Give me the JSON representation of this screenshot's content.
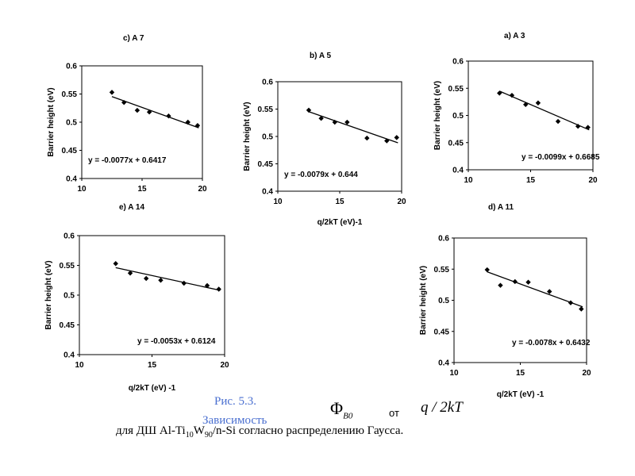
{
  "chart_data": [
    {
      "id": "c",
      "type": "scatter",
      "title": "c) A 7",
      "xlabel": "",
      "ylabel": "Barrier height (eV)",
      "xlim": [
        10,
        20
      ],
      "ylim": [
        0.4,
        0.6
      ],
      "xticks": [
        10,
        15,
        20
      ],
      "yticks": [
        0.4,
        0.45,
        0.5,
        0.55,
        0.6
      ],
      "points": [
        [
          12.5,
          0.553
        ],
        [
          13.5,
          0.535
        ],
        [
          14.6,
          0.521
        ],
        [
          15.6,
          0.518
        ],
        [
          17.2,
          0.511
        ],
        [
          18.8,
          0.5
        ],
        [
          19.6,
          0.494
        ]
      ],
      "trendline": {
        "slope": -0.0077,
        "intercept": 0.6417,
        "x": [
          12.5,
          19.7
        ]
      },
      "equation": "y = -0.0077x + 0.6417"
    },
    {
      "id": "b",
      "type": "scatter",
      "title": "b) A 5",
      "xlabel": "q/2kT (eV)-1",
      "ylabel": "Barrier height (eV)",
      "xlim": [
        10,
        20
      ],
      "ylim": [
        0.4,
        0.6
      ],
      "xticks": [
        10,
        15,
        20
      ],
      "yticks": [
        0.4,
        0.45,
        0.5,
        0.55,
        0.6
      ],
      "points": [
        [
          12.5,
          0.548
        ],
        [
          13.5,
          0.533
        ],
        [
          14.6,
          0.526
        ],
        [
          15.6,
          0.526
        ],
        [
          17.2,
          0.497
        ],
        [
          18.8,
          0.492
        ],
        [
          19.6,
          0.498
        ]
      ],
      "trendline": {
        "slope": -0.0079,
        "intercept": 0.644,
        "x": [
          12.5,
          19.7
        ]
      },
      "equation": "y = -0.0079x + 0.644"
    },
    {
      "id": "a",
      "type": "scatter",
      "title": "a) A 3",
      "xlabel": "",
      "ylabel": "Barrier height (eV)",
      "xlim": [
        10,
        20
      ],
      "ylim": [
        0.4,
        0.6
      ],
      "xticks": [
        10,
        15,
        20
      ],
      "yticks": [
        0.4,
        0.45,
        0.5,
        0.55,
        0.6
      ],
      "points": [
        [
          12.5,
          0.541
        ],
        [
          13.5,
          0.537
        ],
        [
          14.6,
          0.52
        ],
        [
          15.6,
          0.523
        ],
        [
          17.2,
          0.489
        ],
        [
          18.8,
          0.48
        ],
        [
          19.6,
          0.478
        ]
      ],
      "trendline": {
        "slope": -0.0099,
        "intercept": 0.6685,
        "x": [
          12.5,
          19.7
        ]
      },
      "equation": "y = -0.0099x + 0.6685"
    },
    {
      "id": "e",
      "type": "scatter",
      "title": "e) A 14",
      "xlabel": "q/2kT (eV) -1",
      "ylabel": "Barrier height (eV)",
      "xlim": [
        10,
        20
      ],
      "ylim": [
        0.4,
        0.6
      ],
      "xticks": [
        10,
        15,
        20
      ],
      "yticks": [
        0.4,
        0.45,
        0.5,
        0.55,
        0.6
      ],
      "points": [
        [
          12.5,
          0.553
        ],
        [
          13.5,
          0.537
        ],
        [
          14.6,
          0.528
        ],
        [
          15.6,
          0.525
        ],
        [
          17.2,
          0.52
        ],
        [
          18.8,
          0.516
        ],
        [
          19.6,
          0.51
        ]
      ],
      "trendline": {
        "slope": -0.0053,
        "intercept": 0.6124,
        "x": [
          12.5,
          19.7
        ]
      },
      "equation": "y = -0.0053x + 0.6124"
    },
    {
      "id": "d",
      "type": "scatter",
      "title": "d) A 11",
      "xlabel": "q/2kT (eV) -1",
      "ylabel": "Barrier height (eV)",
      "xlim": [
        10,
        20
      ],
      "ylim": [
        0.4,
        0.6
      ],
      "xticks": [
        10,
        15,
        20
      ],
      "yticks": [
        0.4,
        0.45,
        0.5,
        0.55,
        0.6
      ],
      "points": [
        [
          12.5,
          0.549
        ],
        [
          13.5,
          0.524
        ],
        [
          14.6,
          0.53
        ],
        [
          15.6,
          0.529
        ],
        [
          17.2,
          0.514
        ],
        [
          18.8,
          0.496
        ],
        [
          19.6,
          0.486
        ]
      ],
      "trendline": {
        "slope": -0.0078,
        "intercept": 0.6432,
        "x": [
          12.5,
          19.7
        ]
      },
      "equation": "y = -0.0078x + 0.6432"
    }
  ],
  "caption": {
    "fig_label": "Рис. 5.3.",
    "dependence": "Зависимость",
    "phi_symbol": "Φ",
    "phi_sub": "B0",
    "ot": "от",
    "q_over_2kt": "q / 2kT",
    "line_prefix": "для  ДШ Al-Ti",
    "ti_sub": "10",
    "w": "W",
    "w_sub": "90",
    "line_suffix": "/n-Si  согласно распределению Гаусса."
  },
  "colors": {
    "caption_blue": "#4a6fd0",
    "ink": "#000000"
  }
}
